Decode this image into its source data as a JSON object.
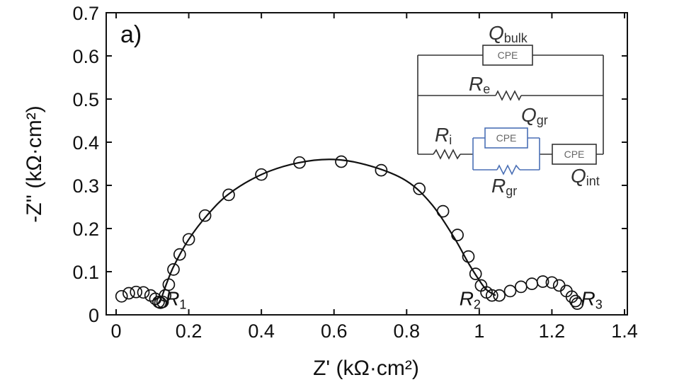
{
  "chart_data": {
    "type": "scatter",
    "panel_label": "a)",
    "xlabel": "Z' (kΩ·cm²)",
    "ylabel": "-Z'' (kΩ·cm²)",
    "xlim": [
      0,
      1.4
    ],
    "ylim": [
      0,
      0.7
    ],
    "x_ticks": [
      "0",
      "0.2",
      "0.4",
      "0.6",
      "0.8",
      "1",
      "1.2",
      "1.4"
    ],
    "y_ticks": [
      "0",
      "0.1",
      "0.2",
      "0.3",
      "0.4",
      "0.5",
      "0.6",
      "0.7"
    ],
    "grid": false,
    "series": [
      {
        "style": "open-circle-markers",
        "x": [
          0.015,
          0.035,
          0.055,
          0.075,
          0.095,
          0.108,
          0.117,
          0.122,
          0.128,
          0.135,
          0.145,
          0.158,
          0.175,
          0.2,
          0.245,
          0.31,
          0.4,
          0.505,
          0.62,
          0.73,
          0.835,
          0.9,
          0.94,
          0.97,
          0.99,
          1.005,
          1.02,
          1.035,
          1.055,
          1.085,
          1.115,
          1.145,
          1.175,
          1.2,
          1.22,
          1.24,
          1.255,
          1.265,
          1.27
        ],
        "y": [
          0.043,
          0.05,
          0.053,
          0.052,
          0.045,
          0.037,
          0.03,
          0.028,
          0.03,
          0.045,
          0.07,
          0.105,
          0.14,
          0.175,
          0.23,
          0.278,
          0.325,
          0.353,
          0.355,
          0.335,
          0.292,
          0.24,
          0.185,
          0.135,
          0.095,
          0.068,
          0.052,
          0.045,
          0.045,
          0.055,
          0.065,
          0.072,
          0.077,
          0.075,
          0.068,
          0.055,
          0.042,
          0.032,
          0.026
        ]
      },
      {
        "style": "fit-line",
        "x": [
          0.115,
          0.125,
          0.14,
          0.16,
          0.2,
          0.25,
          0.31,
          0.4,
          0.5,
          0.6,
          0.7,
          0.8,
          0.87,
          0.93,
          0.97,
          1.0,
          1.02,
          1.045
        ],
        "y": [
          0.025,
          0.04,
          0.075,
          0.115,
          0.175,
          0.23,
          0.28,
          0.325,
          0.352,
          0.36,
          0.345,
          0.31,
          0.255,
          0.18,
          0.12,
          0.08,
          0.058,
          0.045
        ]
      }
    ],
    "annotations": [
      {
        "label": "R",
        "sub": "1",
        "x": 0.135,
        "y": 0.022
      },
      {
        "label": "R",
        "sub": "2",
        "x": 0.945,
        "y": 0.022
      },
      {
        "label": "R",
        "sub": "3",
        "x": 1.28,
        "y": 0.022
      }
    ],
    "inset": {
      "cpe_label": "CPE",
      "q_bulk": {
        "label": "Q",
        "sub": "bulk"
      },
      "r_e": {
        "label": "R",
        "sub": "e"
      },
      "q_gr": {
        "label": "Q",
        "sub": "gr"
      },
      "r_i": {
        "label": "R",
        "sub": "i"
      },
      "r_gr": {
        "label": "R",
        "sub": "gr"
      },
      "q_int": {
        "label": "Q",
        "sub": "int"
      },
      "gr_branch_color": "#4a6fb5",
      "wire_color": "#333333"
    }
  }
}
